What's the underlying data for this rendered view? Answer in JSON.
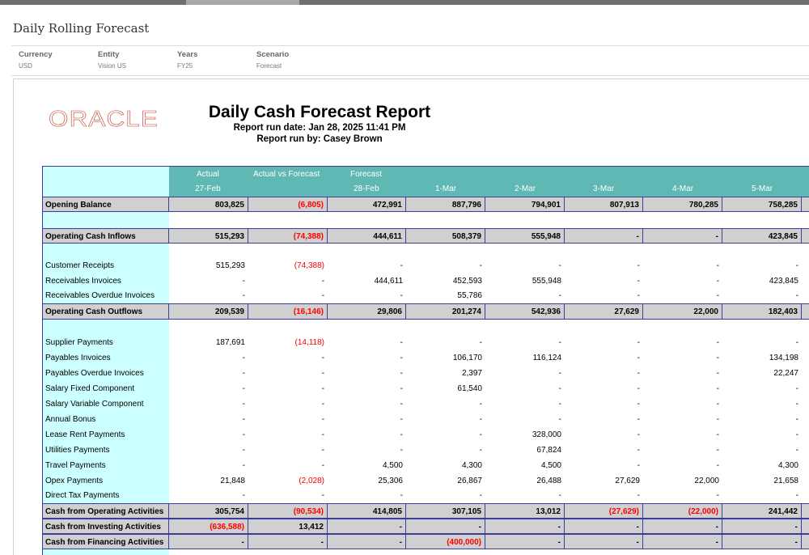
{
  "app": {
    "title": "Daily Rolling Forecast"
  },
  "pov": [
    {
      "label": "Currency",
      "value": "USD"
    },
    {
      "label": "Entity",
      "value": "Vision US"
    },
    {
      "label": "Years",
      "value": "FY25"
    },
    {
      "label": "Scenario",
      "value": "Forecast"
    }
  ],
  "report": {
    "logo_text": "ORACLE",
    "logo_color": "#c74634",
    "title": "Daily Cash Forecast Report",
    "run_date": "Report run date: Jan 28, 2025 11:41 PM",
    "run_by": "Report run by: Casey Brown"
  },
  "columns": {
    "group_labels": [
      "Actual",
      "Actual vs Forecast",
      "Forecast"
    ],
    "dates": [
      "27-Feb",
      "28-Feb",
      "1-Mar",
      "2-Mar",
      "3-Mar",
      "4-Mar",
      "5-Mar"
    ]
  },
  "rows": [
    {
      "label": "Opening Balance",
      "type": "total",
      "values": [
        "803,825",
        "(6,805)",
        "472,991",
        "887,796",
        "794,901",
        "807,913",
        "780,285",
        "758,285"
      ]
    },
    {
      "label": "",
      "type": "blank-white",
      "values": []
    },
    {
      "label": "Operating Cash Inflows",
      "type": "total",
      "values": [
        "515,293",
        "(74,388)",
        "444,611",
        "508,379",
        "555,948",
        "-",
        "-",
        "423,845"
      ]
    },
    {
      "label": "",
      "type": "blank",
      "values": []
    },
    {
      "label": "Customer Receipts",
      "type": "line",
      "values": [
        "515,293",
        "(74,388)",
        "-",
        "-",
        "-",
        "-",
        "-",
        "-"
      ]
    },
    {
      "label": "Receivables Invoices",
      "type": "line",
      "values": [
        "-",
        "-",
        "444,611",
        "452,593",
        "555,948",
        "-",
        "-",
        "423,845"
      ]
    },
    {
      "label": "Receivables Overdue Invoices",
      "type": "line",
      "values": [
        "-",
        "-",
        "-",
        "55,786",
        "-",
        "-",
        "-",
        "-"
      ]
    },
    {
      "label": "Operating Cash Outflows",
      "type": "total",
      "values": [
        "209,539",
        "(16,146)",
        "29,806",
        "201,274",
        "542,936",
        "27,629",
        "22,000",
        "182,403"
      ]
    },
    {
      "label": "",
      "type": "blank",
      "values": []
    },
    {
      "label": "Supplier Payments",
      "type": "line",
      "values": [
        "187,691",
        "(14,118)",
        "-",
        "-",
        "-",
        "-",
        "-",
        "-"
      ]
    },
    {
      "label": "Payables Invoices",
      "type": "line",
      "values": [
        "-",
        "-",
        "-",
        "106,170",
        "116,124",
        "-",
        "-",
        "134,198"
      ]
    },
    {
      "label": "Payables Overdue Invoices",
      "type": "line",
      "values": [
        "-",
        "-",
        "-",
        "2,397",
        "-",
        "-",
        "-",
        "22,247"
      ]
    },
    {
      "label": "Salary Fixed  Component",
      "type": "line",
      "values": [
        "-",
        "-",
        "-",
        "61,540",
        "-",
        "-",
        "-",
        "-"
      ]
    },
    {
      "label": "Salary Variable Component",
      "type": "line",
      "values": [
        "-",
        "-",
        "-",
        "-",
        "-",
        "-",
        "-",
        "-"
      ]
    },
    {
      "label": "Annual Bonus",
      "type": "line",
      "values": [
        "-",
        "-",
        "-",
        "-",
        "-",
        "-",
        "-",
        "-"
      ]
    },
    {
      "label": "Lease Rent Payments",
      "type": "line",
      "values": [
        "-",
        "-",
        "-",
        "-",
        "328,000",
        "-",
        "-",
        "-"
      ]
    },
    {
      "label": "Utilities Payments",
      "type": "line",
      "values": [
        "-",
        "-",
        "-",
        "-",
        "67,824",
        "-",
        "-",
        "-"
      ]
    },
    {
      "label": "Travel Payments",
      "type": "line",
      "values": [
        "-",
        "-",
        "4,500",
        "4,300",
        "4,500",
        "-",
        "-",
        "4,300"
      ]
    },
    {
      "label": "Opex Payments",
      "type": "line",
      "values": [
        "21,848",
        "(2,028)",
        "25,306",
        "26,867",
        "26,488",
        "27,629",
        "22,000",
        "21,658"
      ]
    },
    {
      "label": "Direct Tax Payments",
      "type": "line",
      "values": [
        "-",
        "-",
        "-",
        "-",
        "-",
        "-",
        "-",
        "-"
      ]
    },
    {
      "label": "Cash from Operating Activities",
      "type": "total",
      "values": [
        "305,754",
        "(90,534)",
        "414,805",
        "307,105",
        "13,012",
        "(27,629)",
        "(22,000)",
        "241,442"
      ]
    },
    {
      "label": "Cash from Investing Activities",
      "type": "total",
      "values": [
        "(636,588)",
        "13,412",
        "-",
        "-",
        "-",
        "-",
        "-",
        "-"
      ]
    },
    {
      "label": "Cash from Financing Activities",
      "type": "total",
      "values": [
        "-",
        "-",
        "-",
        "(400,000)",
        "-",
        "-",
        "-",
        "-"
      ]
    }
  ]
}
